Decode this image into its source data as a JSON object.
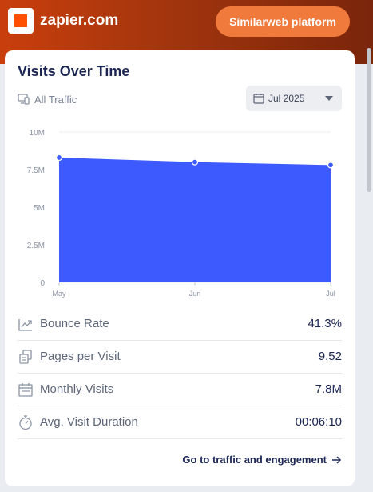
{
  "header": {
    "site_name": "zapier.com",
    "platform_button": "Similarweb platform",
    "colors": {
      "gradient_start": "#c93e0d",
      "gradient_end": "#7a250c",
      "button": "#f07a3c",
      "logo_accent": "#ff4f00"
    }
  },
  "card": {
    "title": "Visits Over Time",
    "traffic_filter": {
      "icon": "devices-icon",
      "label": "All Traffic"
    },
    "date_select": {
      "icon": "calendar-icon",
      "value": "Jul 2025"
    }
  },
  "chart_data": {
    "type": "area",
    "categories": [
      "May",
      "Jun",
      "Jul"
    ],
    "values": [
      8.3,
      8.0,
      7.8
    ],
    "ytick_labels": [
      "0",
      "2.5M",
      "5M",
      "7.5M",
      "10M"
    ],
    "ylim": [
      0,
      10
    ],
    "grid": true,
    "color": "#3d5afe"
  },
  "metrics": [
    {
      "icon": "trend-down-icon",
      "label": "Bounce Rate",
      "value": "41.3%"
    },
    {
      "icon": "pages-icon",
      "label": "Pages per Visit",
      "value": "9.52"
    },
    {
      "icon": "calendar-icon",
      "label": "Monthly Visits",
      "value": "7.8M"
    },
    {
      "icon": "stopwatch-icon",
      "label": "Avg. Visit Duration",
      "value": "00:06:10"
    }
  ],
  "footer_link": {
    "label": "Go to traffic and engagement",
    "icon": "arrow-right-icon"
  }
}
